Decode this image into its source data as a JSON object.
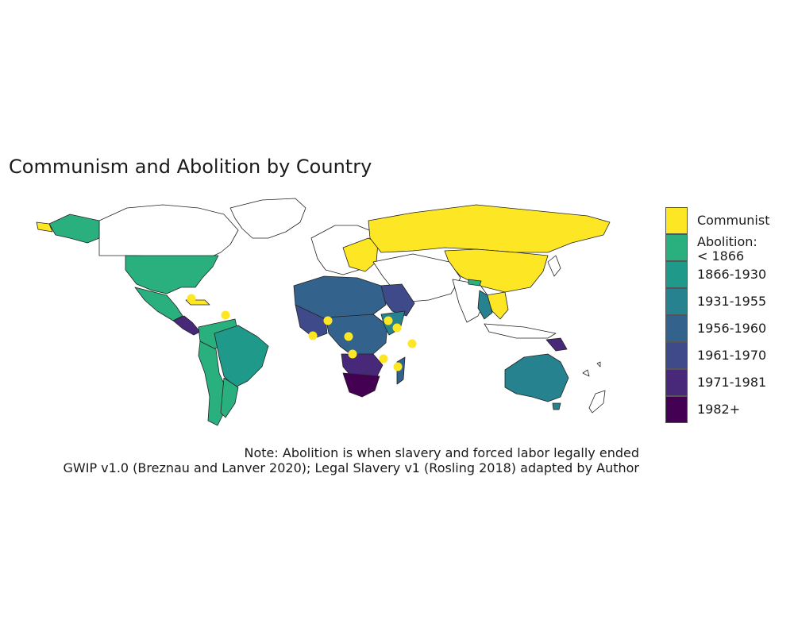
{
  "title": "Communism and Abolition by Country",
  "note": "Note: Abolition is when slavery and forced labor legally ended",
  "source": "GWIP v1.0 (Breznau and Lanver 2020); Legal Slavery v1 (Rosling 2018) adapted by Author",
  "legend": [
    {
      "label": "Communist",
      "color": "#fde725"
    },
    {
      "label": "Abolition:\n< 1866",
      "color": "#2ab07f"
    },
    {
      "label": "1866-1930",
      "color": "#1f9a8a"
    },
    {
      "label": "1931-1955",
      "color": "#26828e"
    },
    {
      "label": "1956-1960",
      "color": "#33638d"
    },
    {
      "label": "1961-1970",
      "color": "#3e4a89"
    },
    {
      "label": "1971-1981",
      "color": "#482878"
    },
    {
      "label": "1982+",
      "color": "#440154"
    }
  ]
}
